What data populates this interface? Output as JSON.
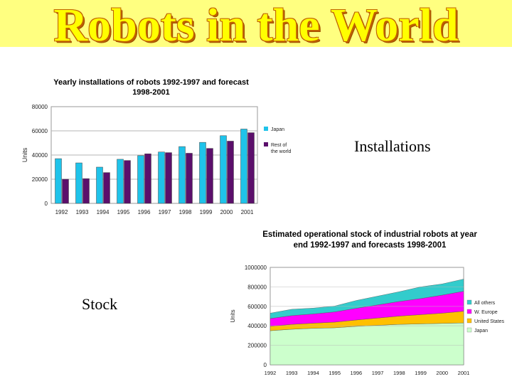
{
  "slide": {
    "title": "Robots in the World",
    "caption_installations": "Installations",
    "caption_stock": "Stock"
  },
  "chart_data": [
    {
      "type": "bar",
      "title": "Yearly installations of robots 1992-1997 and forecast 1998-2001",
      "title_line1": "Yearly installations of robots 1992-1997 and forecast",
      "title_line2": "1998-2001",
      "xlabel": "",
      "ylabel": "Units",
      "ylim": [
        0,
        80000
      ],
      "yticks": [
        "0",
        "20000",
        "40000",
        "60000",
        "80000"
      ],
      "categories": [
        "1992",
        "1993",
        "1994",
        "1995",
        "1996",
        "1997",
        "1998",
        "1999",
        "2000",
        "2001"
      ],
      "series": [
        {
          "name": "Japan",
          "color": "#1fc3ea",
          "values": [
            37000,
            33500,
            30000,
            36500,
            39500,
            42500,
            47000,
            50500,
            56000,
            61500
          ]
        },
        {
          "name": "Rest of the world",
          "color": "#5b0f6b",
          "values": [
            20000,
            20500,
            25500,
            35500,
            41000,
            42000,
            41500,
            45500,
            51500,
            58500
          ]
        }
      ],
      "legend_position": "right",
      "grid": true
    },
    {
      "type": "area",
      "title": "Estimated operational stock of industrial robots at year end 1992-1997 and forecasts 1998-2001",
      "title_line1": "Estimated operational stock of industrial robots at year",
      "title_line2": "end 1992-1997 and forecasts 1998-2001",
      "xlabel": "",
      "ylabel": "Units",
      "ylim": [
        0,
        1000000
      ],
      "yticks": [
        "0",
        "200000",
        "400000",
        "600000",
        "800000",
        "1000000"
      ],
      "categories": [
        "1992",
        "1993",
        "1994",
        "1995",
        "1996",
        "1997",
        "1998",
        "1999",
        "2000",
        "2001"
      ],
      "stacked": true,
      "series": [
        {
          "name": "Japan",
          "color": "#ccffcc",
          "values": [
            350000,
            365000,
            375000,
            380000,
            395000,
            405000,
            415000,
            420000,
            425000,
            430000
          ]
        },
        {
          "name": "United States",
          "color": "#ffc000",
          "values": [
            45000,
            50000,
            52000,
            58000,
            65000,
            75000,
            85000,
            95000,
            105000,
            120000
          ]
        },
        {
          "name": "W. Europe",
          "color": "#ff00ff",
          "values": [
            80000,
            90000,
            95000,
            105000,
            120000,
            135000,
            150000,
            165000,
            185000,
            205000
          ]
        },
        {
          "name": "All others",
          "color": "#33cccc",
          "values": [
            55000,
            65000,
            60000,
            60000,
            80000,
            90000,
            100000,
            120000,
            115000,
            125000
          ]
        }
      ],
      "legend_order": [
        "All others",
        "W. Europe",
        "United States",
        "Japan"
      ],
      "legend_position": "right",
      "grid": true
    }
  ]
}
